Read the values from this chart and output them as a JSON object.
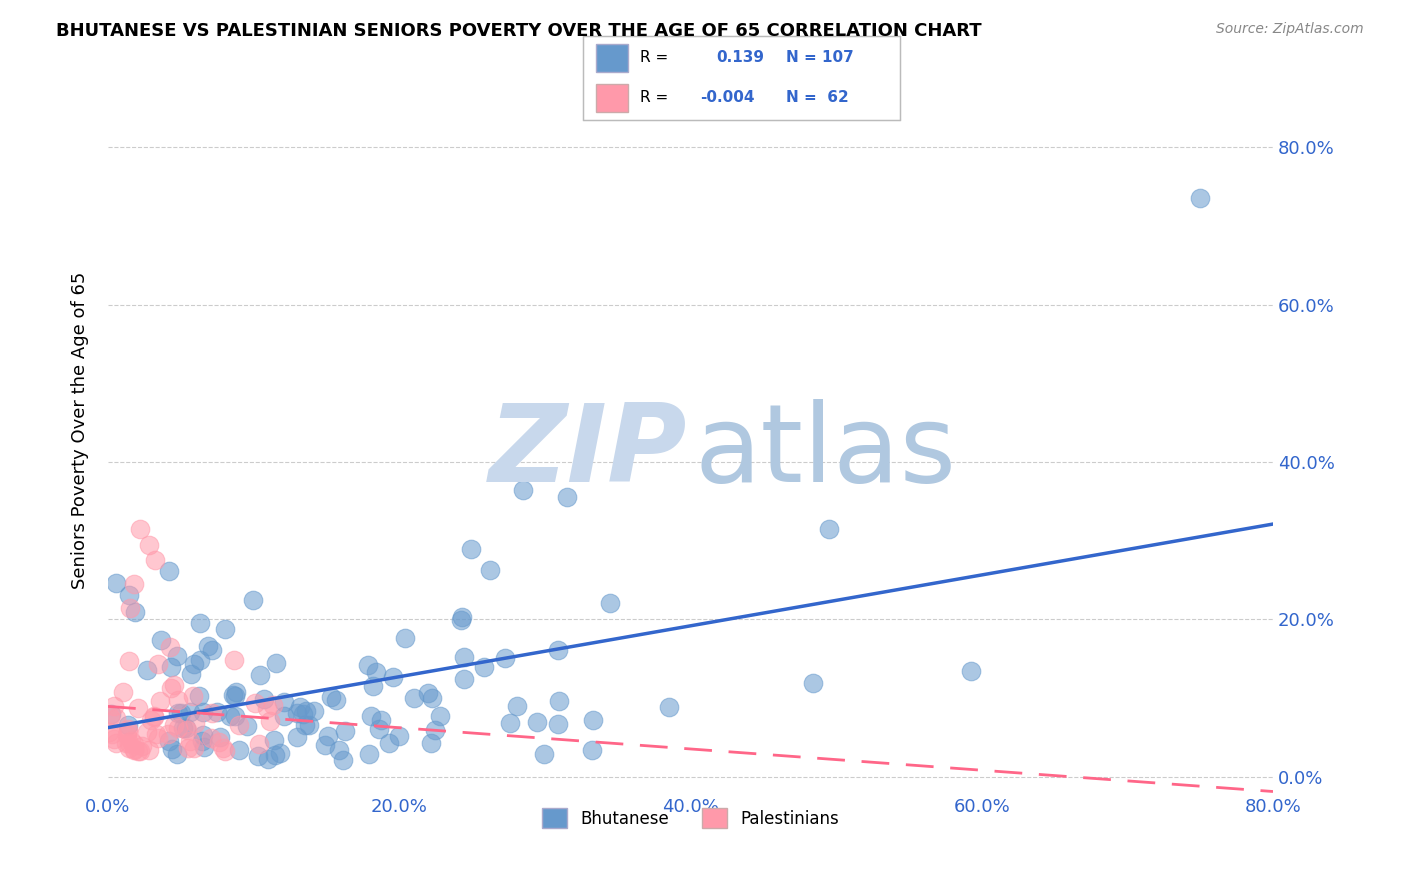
{
  "title": "BHUTANESE VS PALESTINIAN SENIORS POVERTY OVER THE AGE OF 65 CORRELATION CHART",
  "source": "Source: ZipAtlas.com",
  "xlabel_ticks": [
    "0.0%",
    "20.0%",
    "40.0%",
    "60.0%",
    "80.0%"
  ],
  "ylabel": "Seniors Poverty Over the Age of 65",
  "xlim": [
    0.0,
    0.8
  ],
  "ylim": [
    -0.02,
    0.9
  ],
  "bhutanese_R": 0.139,
  "bhutanese_N": 107,
  "palestinian_R": -0.004,
  "palestinian_N": 62,
  "blue_color": "#6699CC",
  "pink_color": "#FF99AA",
  "blue_line_color": "#3366CC",
  "pink_line_color": "#FF6688",
  "background_color": "#FFFFFF",
  "ytick_vals": [
    0.0,
    0.2,
    0.4,
    0.6,
    0.8
  ],
  "xtick_vals": [
    0.0,
    0.2,
    0.4,
    0.6,
    0.8
  ]
}
